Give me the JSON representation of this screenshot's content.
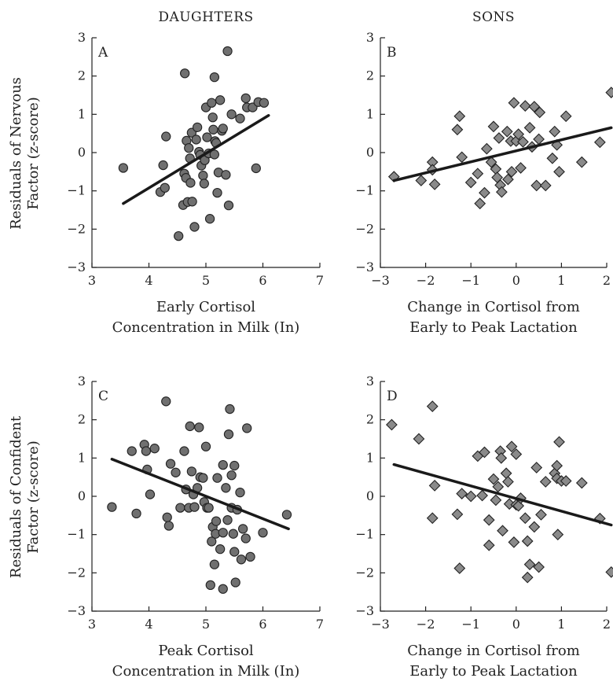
{
  "column_titles": [
    "DAUGHTERS",
    "SONS"
  ],
  "row_ylabels": [
    [
      "Residuals of Nervous",
      "Factor (z-score)"
    ],
    [
      "Residuals of Confident",
      "Factor (z-score)"
    ]
  ],
  "chart_data": [
    {
      "type": "scatter",
      "panel_label": "A",
      "marker": "circle",
      "xlabel": [
        "Early Cortisol",
        "Concentration in Milk (In)"
      ],
      "xlim": [
        3,
        7
      ],
      "ylim": [
        -3,
        3
      ],
      "xticks": [
        3,
        4,
        5,
        6,
        7
      ],
      "yticks": [
        3,
        2,
        1,
        0,
        -1,
        -2,
        -3
      ],
      "fit_line": [
        [
          3.55,
          -1.33
        ],
        [
          6.1,
          0.97
        ]
      ],
      "points": [
        [
          3.55,
          -0.4
        ],
        [
          4.2,
          -1.03
        ],
        [
          4.25,
          -0.33
        ],
        [
          4.3,
          0.42
        ],
        [
          4.28,
          -0.92
        ],
        [
          4.52,
          -2.18
        ],
        [
          4.6,
          -1.37
        ],
        [
          4.62,
          -0.55
        ],
        [
          4.63,
          2.07
        ],
        [
          4.65,
          -0.66
        ],
        [
          4.66,
          0.31
        ],
        [
          4.68,
          -1.29
        ],
        [
          4.7,
          0.12
        ],
        [
          4.72,
          -0.15
        ],
        [
          4.73,
          -0.79
        ],
        [
          4.75,
          0.52
        ],
        [
          4.76,
          -1.28
        ],
        [
          4.8,
          -1.94
        ],
        [
          4.83,
          0.34
        ],
        [
          4.85,
          0.66
        ],
        [
          4.88,
          0.02
        ],
        [
          4.9,
          -0.06
        ],
        [
          4.92,
          -0.34
        ],
        [
          4.95,
          -0.6
        ],
        [
          4.97,
          -0.81
        ],
        [
          4.98,
          -0.2
        ],
        [
          5.0,
          1.18
        ],
        [
          5.02,
          0.4
        ],
        [
          5.05,
          -0.02
        ],
        [
          5.07,
          -1.73
        ],
        [
          5.1,
          1.3
        ],
        [
          5.12,
          0.92
        ],
        [
          5.13,
          0.6
        ],
        [
          5.15,
          1.97
        ],
        [
          5.15,
          -0.05
        ],
        [
          5.16,
          0.3
        ],
        [
          5.18,
          0.25
        ],
        [
          5.2,
          -1.05
        ],
        [
          5.22,
          -0.52
        ],
        [
          5.25,
          1.37
        ],
        [
          5.28,
          0.57
        ],
        [
          5.3,
          0.63
        ],
        [
          5.35,
          -0.58
        ],
        [
          5.38,
          2.65
        ],
        [
          5.4,
          -1.38
        ],
        [
          5.45,
          1.0
        ],
        [
          5.6,
          0.89
        ],
        [
          5.7,
          1.42
        ],
        [
          5.72,
          1.18
        ],
        [
          5.82,
          1.18
        ],
        [
          5.88,
          -0.41
        ],
        [
          5.92,
          1.32
        ],
        [
          6.02,
          1.3
        ]
      ]
    },
    {
      "type": "scatter",
      "panel_label": "B",
      "marker": "diamond",
      "xlabel": [
        "Change in Cortisol from",
        "Early to Peak Lactation"
      ],
      "xlim": [
        -3,
        2
      ],
      "ylim": [
        -3,
        3
      ],
      "xticks": [
        -3,
        -2,
        -1,
        0,
        1,
        2
      ],
      "yticks": [
        3,
        2,
        1,
        0,
        -1,
        -2,
        -3
      ],
      "fit_line": [
        [
          -2.7,
          -0.73
        ],
        [
          2.1,
          0.65
        ]
      ],
      "points": [
        [
          -2.7,
          -0.63
        ],
        [
          -2.1,
          -0.73
        ],
        [
          -1.85,
          -0.25
        ],
        [
          -1.85,
          -0.45
        ],
        [
          -1.8,
          -0.83
        ],
        [
          -1.3,
          0.6
        ],
        [
          -1.25,
          0.95
        ],
        [
          -1.2,
          -0.12
        ],
        [
          -1.0,
          -0.78
        ],
        [
          -0.85,
          -0.55
        ],
        [
          -0.8,
          -1.33
        ],
        [
          -0.7,
          -1.05
        ],
        [
          -0.65,
          0.1
        ],
        [
          -0.55,
          -0.25
        ],
        [
          -0.5,
          0.68
        ],
        [
          -0.45,
          -0.43
        ],
        [
          -0.42,
          -0.65
        ],
        [
          -0.38,
          0.38
        ],
        [
          -0.35,
          -0.85
        ],
        [
          -0.32,
          -1.03
        ],
        [
          -0.2,
          0.55
        ],
        [
          -0.18,
          -0.7
        ],
        [
          -0.12,
          0.3
        ],
        [
          -0.1,
          -0.5
        ],
        [
          -0.05,
          1.3
        ],
        [
          0.0,
          0.3
        ],
        [
          0.05,
          0.48
        ],
        [
          0.1,
          -0.4
        ],
        [
          0.15,
          0.28
        ],
        [
          0.2,
          1.22
        ],
        [
          0.3,
          0.65
        ],
        [
          0.35,
          0.15
        ],
        [
          0.4,
          1.2
        ],
        [
          0.45,
          -0.86
        ],
        [
          0.5,
          0.35
        ],
        [
          0.52,
          1.05
        ],
        [
          0.65,
          -0.86
        ],
        [
          0.8,
          -0.15
        ],
        [
          0.85,
          0.55
        ],
        [
          0.9,
          0.2
        ],
        [
          0.95,
          -0.5
        ],
        [
          1.1,
          0.95
        ],
        [
          1.45,
          -0.25
        ],
        [
          1.85,
          0.27
        ],
        [
          2.1,
          1.57
        ]
      ]
    },
    {
      "type": "scatter",
      "panel_label": "C",
      "marker": "circle",
      "xlabel": [
        "Peak Cortisol",
        "Concentration in Milk (In)"
      ],
      "xlim": [
        3,
        7
      ],
      "ylim": [
        -3,
        3
      ],
      "xticks": [
        3,
        4,
        5,
        6,
        7
      ],
      "yticks": [
        3,
        2,
        1,
        0,
        -1,
        -2,
        -3
      ],
      "fit_line": [
        [
          3.35,
          0.97
        ],
        [
          6.45,
          -0.85
        ]
      ],
      "points": [
        [
          3.35,
          -0.28
        ],
        [
          3.7,
          1.18
        ],
        [
          3.78,
          -0.45
        ],
        [
          3.92,
          1.35
        ],
        [
          3.95,
          1.18
        ],
        [
          3.97,
          0.7
        ],
        [
          4.02,
          0.05
        ],
        [
          4.1,
          1.25
        ],
        [
          4.3,
          2.48
        ],
        [
          4.32,
          -0.55
        ],
        [
          4.35,
          -0.77
        ],
        [
          4.38,
          0.85
        ],
        [
          4.47,
          0.62
        ],
        [
          4.55,
          -0.3
        ],
        [
          4.62,
          1.18
        ],
        [
          4.65,
          0.18
        ],
        [
          4.7,
          -0.3
        ],
        [
          4.72,
          1.83
        ],
        [
          4.75,
          0.65
        ],
        [
          4.78,
          0.05
        ],
        [
          4.8,
          -0.28
        ],
        [
          4.85,
          0.22
        ],
        [
          4.88,
          1.8
        ],
        [
          4.9,
          0.5
        ],
        [
          4.95,
          0.48
        ],
        [
          4.97,
          -0.15
        ],
        [
          5.0,
          1.3
        ],
        [
          5.02,
          -0.3
        ],
        [
          5.05,
          -0.3
        ],
        [
          5.08,
          -2.32
        ],
        [
          5.1,
          -1.18
        ],
        [
          5.12,
          -0.8
        ],
        [
          5.15,
          -1.78
        ],
        [
          5.17,
          -0.98
        ],
        [
          5.18,
          -0.65
        ],
        [
          5.2,
          0.48
        ],
        [
          5.25,
          -1.38
        ],
        [
          5.3,
          -0.95
        ],
        [
          5.3,
          -2.42
        ],
        [
          5.3,
          0.82
        ],
        [
          5.35,
          0.22
        ],
        [
          5.38,
          -0.62
        ],
        [
          5.4,
          1.62
        ],
        [
          5.42,
          2.28
        ],
        [
          5.45,
          -0.3
        ],
        [
          5.45,
          0.55
        ],
        [
          5.48,
          -0.98
        ],
        [
          5.5,
          0.8
        ],
        [
          5.5,
          -1.45
        ],
        [
          5.52,
          -2.25
        ],
        [
          5.55,
          -0.35
        ],
        [
          5.6,
          0.1
        ],
        [
          5.62,
          -1.65
        ],
        [
          5.65,
          -0.85
        ],
        [
          5.7,
          -1.1
        ],
        [
          5.72,
          1.78
        ],
        [
          5.78,
          -1.58
        ],
        [
          6.0,
          -0.95
        ],
        [
          6.42,
          -0.48
        ]
      ]
    },
    {
      "type": "scatter",
      "panel_label": "D",
      "marker": "diamond",
      "xlabel": [
        "Change in Cortisol from",
        "Early to Peak Lactation"
      ],
      "xlim": [
        -3,
        2
      ],
      "ylim": [
        -3,
        3
      ],
      "xticks": [
        -3,
        -2,
        -1,
        0,
        1,
        2
      ],
      "yticks": [
        3,
        2,
        1,
        0,
        -1,
        -2,
        -3
      ],
      "fit_line": [
        [
          -2.7,
          0.83
        ],
        [
          2.1,
          -0.75
        ]
      ],
      "points": [
        [
          -2.75,
          1.87
        ],
        [
          -2.15,
          1.5
        ],
        [
          -1.85,
          2.35
        ],
        [
          -1.85,
          -0.57
        ],
        [
          -1.8,
          0.28
        ],
        [
          -1.3,
          -0.47
        ],
        [
          -1.25,
          -1.88
        ],
        [
          -1.2,
          0.07
        ],
        [
          -1.0,
          0.0
        ],
        [
          -0.85,
          1.05
        ],
        [
          -0.75,
          0.02
        ],
        [
          -0.7,
          1.15
        ],
        [
          -0.6,
          -0.62
        ],
        [
          -0.6,
          -1.28
        ],
        [
          -0.5,
          0.45
        ],
        [
          -0.45,
          -0.1
        ],
        [
          -0.4,
          0.25
        ],
        [
          -0.35,
          1.18
        ],
        [
          -0.33,
          1.0
        ],
        [
          -0.3,
          -0.9
        ],
        [
          -0.22,
          0.6
        ],
        [
          -0.18,
          0.38
        ],
        [
          -0.15,
          -0.2
        ],
        [
          -0.1,
          1.3
        ],
        [
          -0.05,
          -1.2
        ],
        [
          0.0,
          1.1
        ],
        [
          0.0,
          -0.22
        ],
        [
          0.05,
          -0.25
        ],
        [
          0.1,
          -0.05
        ],
        [
          0.2,
          -0.57
        ],
        [
          0.25,
          -1.17
        ],
        [
          0.25,
          -2.12
        ],
        [
          0.3,
          -1.78
        ],
        [
          0.4,
          -0.8
        ],
        [
          0.45,
          0.75
        ],
        [
          0.5,
          -1.85
        ],
        [
          0.55,
          -0.48
        ],
        [
          0.65,
          0.38
        ],
        [
          0.85,
          0.6
        ],
        [
          0.9,
          0.47
        ],
        [
          0.9,
          0.8
        ],
        [
          0.92,
          -1.0
        ],
        [
          0.95,
          1.42
        ],
        [
          1.0,
          0.4
        ],
        [
          1.1,
          0.4
        ],
        [
          1.45,
          0.35
        ],
        [
          1.85,
          -0.58
        ],
        [
          2.1,
          -1.98
        ]
      ]
    }
  ]
}
